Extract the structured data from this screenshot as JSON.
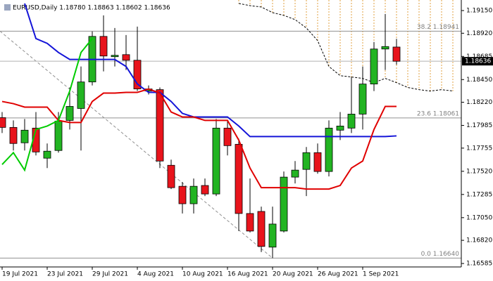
{
  "chart_data": {
    "type": "candlestick",
    "title": "EURUSD,Daily  1.18780 1.18863 1.18602 1.18636",
    "categories": [
      "19 Jul 2021",
      null,
      null,
      null,
      "23 Jul 2021",
      null,
      null,
      null,
      "29 Jul 2021",
      null,
      null,
      null,
      "4 Aug 2021",
      null,
      null,
      null,
      "10 Aug 2021",
      null,
      null,
      null,
      "16 Aug 2021",
      null,
      null,
      null,
      "20 Aug 2021",
      null,
      null,
      null,
      "26 Aug 2021",
      null,
      null,
      null,
      "1 Sep 2021",
      null,
      null,
      null,
      null,
      null,
      null,
      null,
      null
    ],
    "open": [
      1.18064,
      1.17965,
      1.17809,
      1.17958,
      1.17653,
      1.17731,
      1.18036,
      1.18157,
      1.18426,
      1.18888,
      1.18682,
      1.18703,
      1.18646,
      1.18334,
      1.18348,
      1.17581,
      1.17368,
      1.17191,
      1.17376,
      1.1729,
      1.17958,
      1.17794,
      1.17092,
      1.17113,
      1.16751,
      1.16914,
      1.17461,
      1.17539,
      1.17709,
      1.17518,
      1.17937,
      1.17958,
      1.181,
      1.18405,
      1.1876,
      1.1878,
      null,
      null,
      null,
      null,
      null
    ],
    "high": [
      1.18121,
      1.18036,
      1.1805,
      1.18121,
      1.17802,
      1.18121,
      1.1837,
      1.18583,
      1.18938,
      1.19101,
      1.18973,
      1.18902,
      1.18987,
      1.18391,
      1.1837,
      1.17638,
      1.17411,
      1.17447,
      1.17447,
      1.1805,
      1.18036,
      1.17851,
      1.17447,
      1.17162,
      1.17162,
      1.17518,
      1.17624,
      1.17766,
      1.17802,
      1.18036,
      1.18121,
      1.18476,
      1.18583,
      1.18831,
      1.19115,
      1.18863,
      null,
      null,
      null,
      null,
      null
    ],
    "low": [
      1.17908,
      1.17731,
      1.17731,
      1.17681,
      1.17553,
      1.17709,
      1.17944,
      1.17731,
      1.18391,
      1.18533,
      1.18583,
      1.18547,
      1.18334,
      1.18299,
      1.17553,
      1.1734,
      1.17092,
      1.17092,
      1.17269,
      1.17269,
      1.17681,
      1.16914,
      1.169,
      1.16701,
      1.1664,
      1.169,
      1.17397,
      1.17269,
      1.17496,
      1.17468,
      1.17837,
      1.17908,
      1.17944,
      1.18334,
      1.18547,
      1.18602,
      null,
      null,
      null,
      null,
      null
    ],
    "close": [
      1.17965,
      1.17802,
      1.17937,
      1.17716,
      1.17724,
      1.18029,
      1.18178,
      1.18426,
      1.18888,
      1.18689,
      1.18696,
      1.18646,
      1.18355,
      1.18355,
      1.17624,
      1.17354,
      1.17191,
      1.17368,
      1.1729,
      1.17958,
      1.1778,
      1.17092,
      1.16914,
      1.16758,
      1.16985,
      1.17461,
      1.17532,
      1.17709,
      1.17518,
      1.17958,
      1.17979,
      1.181,
      1.18405,
      1.1876,
      1.18785,
      1.18636,
      null,
      null,
      null,
      null,
      null
    ],
    "up_color": "#22b422",
    "down_color": "#e8141c",
    "series": [
      {
        "color": "#1414d8",
        "values": [
          null,
          null,
          1.19222,
          1.18866,
          1.18817,
          1.18725,
          1.18654,
          1.18654,
          1.18654,
          1.18654,
          1.18654,
          1.18583,
          1.18405,
          1.1832,
          1.1832,
          1.18228,
          1.18107,
          1.18071,
          1.18071,
          1.18071,
          1.18071,
          1.17979,
          1.17872,
          1.17872,
          1.17872,
          1.17872,
          1.17872,
          1.17872,
          1.17872,
          1.17872,
          1.17872,
          1.17872,
          1.17872,
          1.17872,
          1.17872,
          1.17879,
          null,
          null,
          null,
          null,
          null
        ]
      },
      {
        "color": "#e00000",
        "values": [
          1.18228,
          1.18206,
          1.18171,
          1.18171,
          1.18171,
          1.18036,
          1.18015,
          1.18015,
          1.18228,
          1.18313,
          1.18313,
          1.1832,
          1.1832,
          1.18355,
          1.18313,
          1.18121,
          1.18071,
          1.18071,
          1.18036,
          1.18036,
          1.18036,
          1.17837,
          1.17553,
          1.17354,
          1.17354,
          1.17354,
          1.17354,
          1.1734,
          1.1734,
          1.1734,
          1.17376,
          1.17553,
          1.17624,
          1.17944,
          1.18178,
          1.18178,
          null,
          null,
          null,
          null,
          null
        ]
      },
      {
        "color": "#00cc00",
        "values": [
          1.17589,
          1.17709,
          1.17532,
          1.17944,
          1.17979,
          1.18036,
          1.18334,
          1.18725,
          1.18866,
          null,
          null,
          null,
          null,
          null,
          null,
          null,
          null,
          null,
          null,
          null,
          null,
          null,
          null,
          null,
          null,
          null,
          null,
          null,
          null,
          null,
          null,
          null,
          null,
          null,
          null,
          null,
          null,
          null,
          null,
          null,
          null
        ]
      },
      {
        "color": "#000000",
        "line_style": "dashed",
        "hatch_color": "#e0a040",
        "values": [
          null,
          null,
          null,
          null,
          null,
          null,
          null,
          null,
          null,
          null,
          null,
          null,
          null,
          null,
          null,
          null,
          null,
          null,
          null,
          null,
          null,
          1.19222,
          1.192,
          1.19186,
          1.19129,
          1.19101,
          1.19058,
          1.18973,
          1.18845,
          1.18583,
          1.1849,
          1.18476,
          1.18462,
          1.18419,
          1.18462,
          1.18419,
          1.1837,
          1.18348,
          1.18334,
          1.18348,
          1.18334
        ]
      }
    ],
    "fib_levels": [
      {
        "value": 1.18941,
        "label": "38.2 1.18941"
      },
      {
        "value": 1.18061,
        "label": "23.6 1.18061"
      },
      {
        "value": 1.1664,
        "label": "0.0 1.16640"
      }
    ],
    "last_price": {
      "value": 1.18636,
      "label": "1.18636"
    },
    "ylim": [
      1.1655,
      1.19257
    ],
    "yticks": [
      {
        "value": 1.1915,
        "label": "1.19150"
      },
      {
        "value": 1.1892,
        "label": "1.18920"
      },
      1.18685,
      {
        "value": 1.1845,
        "label": "1.18450"
      },
      {
        "value": 1.1822,
        "label": "1.18220"
      },
      1.17985,
      1.17755,
      {
        "value": 1.1752,
        "label": "1.17520"
      },
      1.17285,
      {
        "value": 1.1705,
        "label": "1.17050"
      },
      {
        "value": 1.1682,
        "label": "1.16820"
      },
      1.16585
    ]
  }
}
